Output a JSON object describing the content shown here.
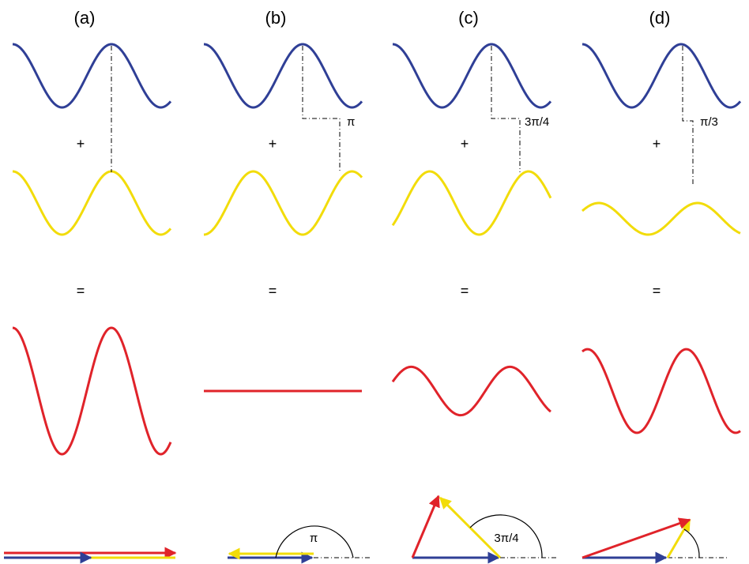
{
  "colors": {
    "wave_a": "#2f3f96",
    "wave_b": "#f2dc0a",
    "sum": "#e0232a",
    "guide": "#000000"
  },
  "symbols": {
    "plus": "+",
    "equals": "="
  },
  "panels": [
    {
      "label": "(a)",
      "phase_text": "",
      "phase": 0,
      "amp_b": 1.0,
      "amp_sum": 2.0
    },
    {
      "label": "(b)",
      "phase_text": "π",
      "phase": 3.14159,
      "amp_b": 1.0,
      "amp_sum": 0.0
    },
    {
      "label": "(c)",
      "phase_text": "3π/4",
      "phase": 2.35619,
      "amp_b": 1.0,
      "amp_sum": 0.765
    },
    {
      "label": "(d)",
      "phase_text": "π/3",
      "phase": 1.0472,
      "amp_b": 0.5,
      "amp_sum": 1.323
    }
  ]
}
